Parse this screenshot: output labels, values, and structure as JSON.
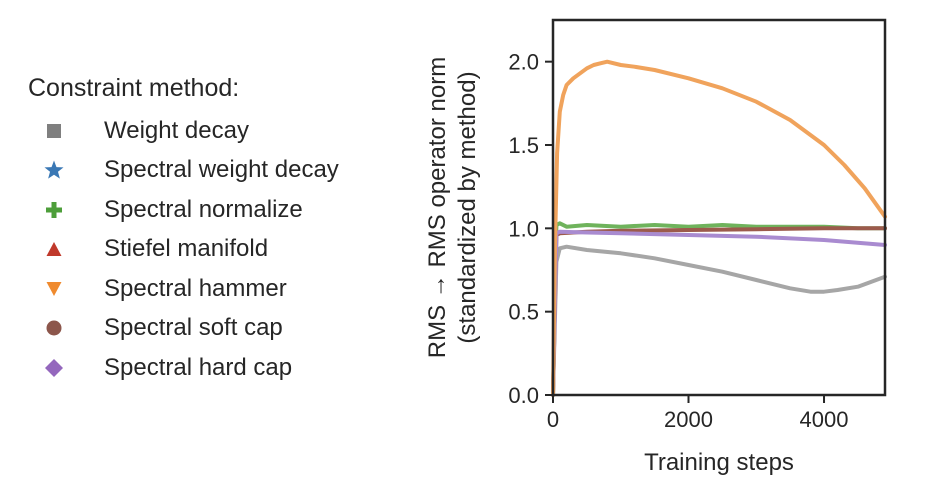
{
  "legend": {
    "title": "Constraint method:",
    "items": [
      {
        "label": "Weight decay",
        "color": "#7f7f7f",
        "marker": "square"
      },
      {
        "label": "Spectral weight decay",
        "color": "#3a78b5",
        "marker": "star"
      },
      {
        "label": "Spectral normalize",
        "color": "#4d9e3a",
        "marker": "plus"
      },
      {
        "label": "Stiefel manifold",
        "color": "#c0392b",
        "marker": "triangle-up"
      },
      {
        "label": "Spectral hammer",
        "color": "#ef8a2e",
        "marker": "triangle-down"
      },
      {
        "label": "Spectral soft cap",
        "color": "#8c564b",
        "marker": "circle"
      },
      {
        "label": "Spectral hard cap",
        "color": "#9467bd",
        "marker": "diamond"
      }
    ]
  },
  "chart_data": {
    "type": "line",
    "xlabel": "Training steps",
    "ylabel": [
      "RMS → RMS operator norm",
      "(standardized by method)"
    ],
    "xlim": [
      0,
      4900
    ],
    "ylim": [
      0,
      2.25
    ],
    "xticks": [
      0,
      2000,
      4000
    ],
    "yticks": [
      0.0,
      0.5,
      1.0,
      1.5,
      2.0
    ],
    "xtick_labels": [
      "0",
      "2000",
      "4000"
    ],
    "ytick_labels": [
      "0.0",
      "0.5",
      "1.0",
      "1.5",
      "2.0"
    ],
    "grid": false,
    "series": [
      {
        "name": "Weight decay",
        "color": "#a6a6a6",
        "x": [
          0,
          50,
          100,
          200,
          500,
          1000,
          1500,
          2000,
          2500,
          3000,
          3500,
          3800,
          4000,
          4200,
          4500,
          4900
        ],
        "y": [
          0,
          0.8,
          0.88,
          0.89,
          0.87,
          0.85,
          0.82,
          0.78,
          0.74,
          0.69,
          0.64,
          0.62,
          0.62,
          0.63,
          0.65,
          0.71
        ]
      },
      {
        "name": "Spectral normalize",
        "color": "#6fb35c",
        "x": [
          0,
          50,
          100,
          200,
          500,
          1000,
          1500,
          2000,
          2500,
          3000,
          3500,
          4000,
          4500,
          4900
        ],
        "y": [
          0,
          1.02,
          1.03,
          1.01,
          1.02,
          1.01,
          1.02,
          1.01,
          1.02,
          1.01,
          1.01,
          1.01,
          1.0,
          1.0
        ]
      },
      {
        "name": "Spectral soft cap",
        "color": "#9c5a4c",
        "x": [
          0,
          50,
          100,
          500,
          1000,
          2000,
          3000,
          4000,
          4900
        ],
        "y": [
          0,
          0.96,
          0.97,
          0.98,
          0.985,
          0.99,
          0.995,
          1.0,
          1.0
        ]
      },
      {
        "name": "Spectral hard cap",
        "color": "#a98bd0",
        "x": [
          0,
          50,
          100,
          500,
          1000,
          2000,
          3000,
          4000,
          4900
        ],
        "y": [
          0,
          0.97,
          0.98,
          0.975,
          0.97,
          0.96,
          0.95,
          0.93,
          0.9
        ]
      },
      {
        "name": "Spectral hammer",
        "color": "#f0a35c",
        "x": [
          0,
          30,
          60,
          100,
          150,
          200,
          300,
          400,
          500,
          600,
          700,
          800,
          1000,
          1200,
          1500,
          2000,
          2500,
          3000,
          3500,
          4000,
          4300,
          4600,
          4900
        ],
        "y": [
          0.0,
          0.9,
          1.45,
          1.7,
          1.8,
          1.86,
          1.9,
          1.93,
          1.96,
          1.98,
          1.99,
          2.0,
          1.98,
          1.97,
          1.95,
          1.9,
          1.84,
          1.76,
          1.65,
          1.5,
          1.38,
          1.24,
          1.07
        ]
      }
    ]
  }
}
